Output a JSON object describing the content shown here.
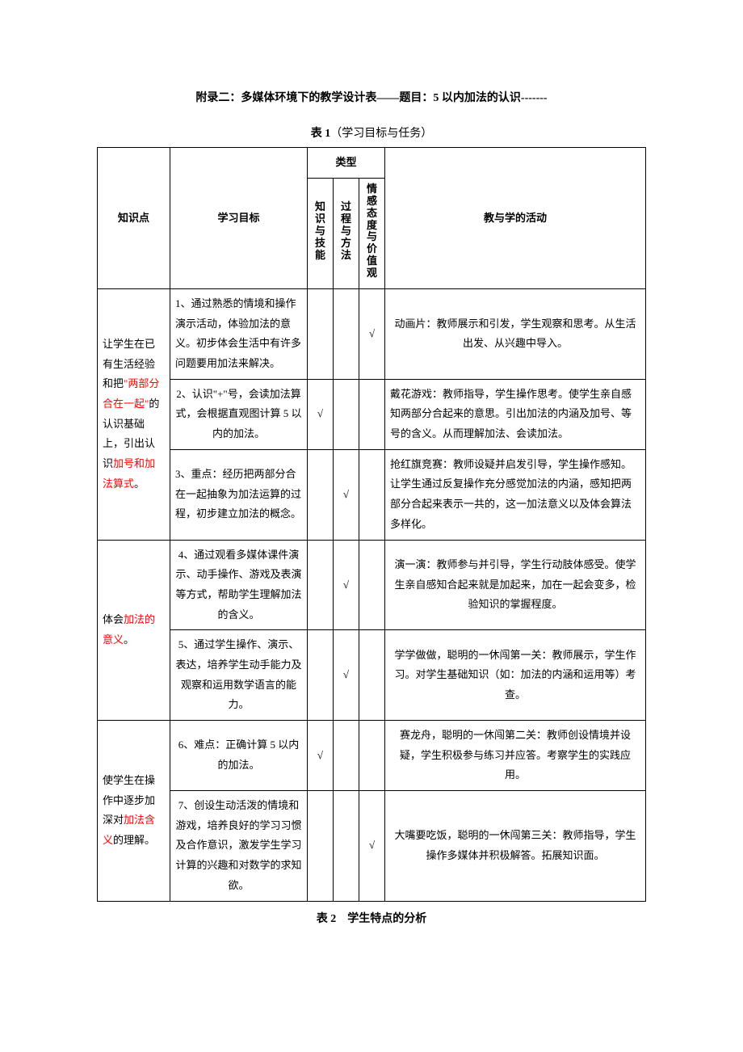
{
  "title": "附录二：多媒体环境下的教学设计表——题目：5 以内加法的认识-------",
  "table1_caption_prefix": "表 1",
  "table1_caption_rest": "（学习目标与任务）",
  "headers": {
    "knowledge_point": "知识点",
    "learning_goal": "学习目标",
    "type": "类型",
    "type_col1": "知识与技能",
    "type_col2": "过程与方法",
    "type_col3": "情感态度与价值观",
    "activity": "教与学的活动"
  },
  "check": "√",
  "groups": [
    {
      "kp_parts": [
        {
          "t": "让学生在已有生活经验和把",
          "red": false
        },
        {
          "t": "\"两部分合在一起\"",
          "red": true
        },
        {
          "t": "的认识基础上，引出认识",
          "red": false
        },
        {
          "t": "加号和加法算式",
          "red": true
        },
        {
          "t": "。",
          "red": false
        }
      ],
      "rows": [
        {
          "goal": "1、通过熟悉的情境和操作演示活动，体验加法的意义。初步体会生活中有许多问题要用加法来解决。",
          "c1": "",
          "c2": "",
          "c3": "√",
          "activity": "动画片：教师展示和引发，学生观察和思考。从生活出发、从兴趣中导入。",
          "activity_align": "center"
        },
        {
          "goal": "2、认识\"+\"号，会读加法算式，会根据直观图计算 5 以内的加法。",
          "c1": "√",
          "c2": "",
          "c3": "",
          "activity": "戴花游戏：教师指导，学生操作思考。使学生亲自感知两部分合起来的意思。引出加法的内涵及加号、等号的含义。从而理解加法、会读加法。",
          "activity_align": "left"
        },
        {
          "goal": "3、重点：经历把两部分合在一起抽象为加法运算的过程，初步建立加法的概念。",
          "c1": "",
          "c2": "√",
          "c3": "",
          "activity": "抢红旗竞赛：教师设疑并启发引导，学生操作感知。让学生通过反复操作充分感觉加法的内涵，感知把两部分合起来表示一共的，这一加法意义以及体会算法多样化。",
          "activity_align": "left"
        }
      ]
    },
    {
      "kp_parts": [
        {
          "t": "体会",
          "red": false
        },
        {
          "t": "加法的意义",
          "red": true
        },
        {
          "t": "。",
          "red": false
        }
      ],
      "rows": [
        {
          "goal": "4、通过观看多媒体课件演示、动手操作、游戏及表演等方式，帮助学生理解加法的含义。",
          "c1": "",
          "c2": "√",
          "c3": "",
          "activity": "演一演：教师参与并引导，学生行动肢体感受。使学生亲自感知合起来就是加起来，加在一起会变多，检验知识的掌握程度。",
          "activity_align": "center"
        },
        {
          "goal": "5、通过学生操作、演示、表达，培养学生动手能力及观察和运用数学语言的能力。",
          "c1": "",
          "c2": "√",
          "c3": "",
          "activity": "学学做做，聪明的一休闯第一关：教师展示，学生作习。对学生基础知识（如：加法的内涵和运用等）考查。",
          "activity_align": "center"
        }
      ]
    },
    {
      "kp_parts": [
        {
          "t": "使学生在操作中逐步加深对",
          "red": false
        },
        {
          "t": "加法含义",
          "red": true
        },
        {
          "t": "的理解。",
          "red": false
        }
      ],
      "rows": [
        {
          "goal": "6、难点：正确计算 5 以内的加法。",
          "c1": "√",
          "c2": "",
          "c3": "",
          "activity": "赛龙舟，聪明的一休闯第二关：教师创设情境并设疑，学生积极参与练习并应答。考察学生的实践应用。",
          "activity_align": "center"
        },
        {
          "goal": "7、创设生动活泼的情境和游戏，培养良好的学习习惯及合作意识，激发学生学习计算的兴趣和对数学的求知欲。",
          "c1": "",
          "c2": "",
          "c3": "√",
          "activity": "大嘴要吃饭，聪明的一休闯第三关：教师指导，学生操作多媒体并积极解答。拓展知识面。",
          "activity_align": "center"
        }
      ]
    }
  ],
  "table2_caption_a": "表 2",
  "table2_caption_b": "学生特点的分析"
}
